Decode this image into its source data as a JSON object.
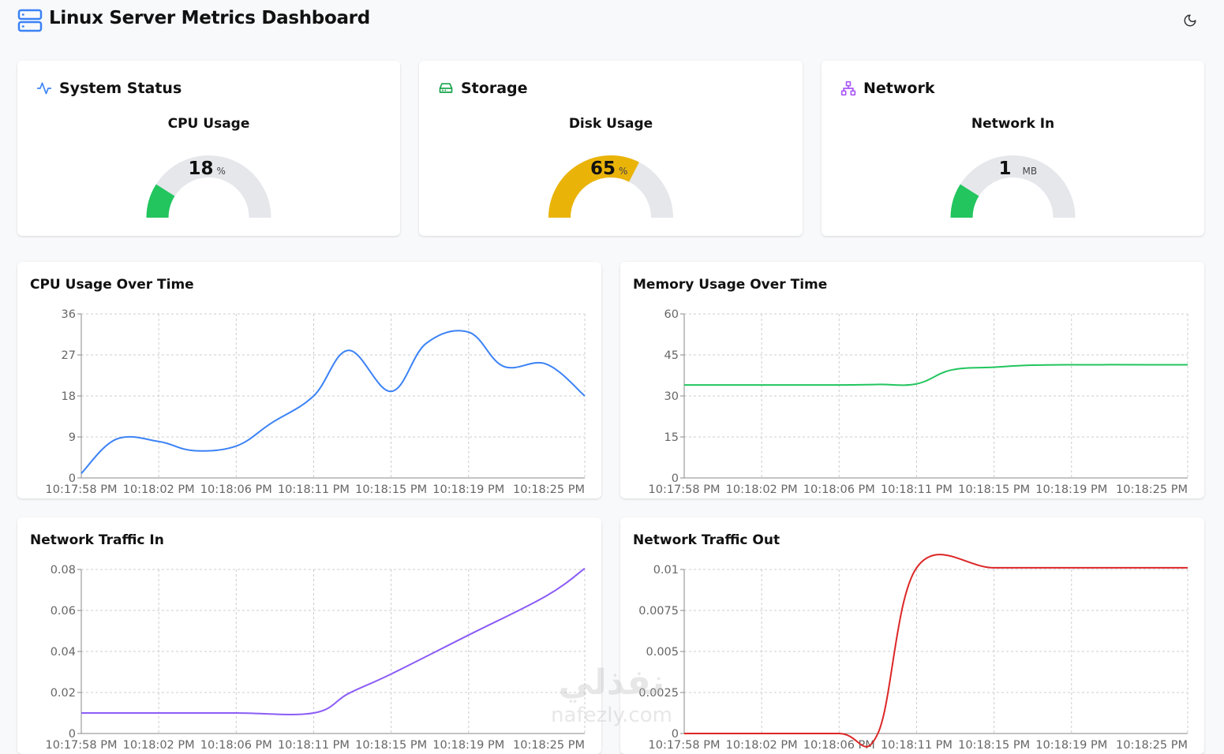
{
  "header": {
    "title": "Linux Server Metrics Dashboard",
    "logo_icon": "server-icon",
    "theme_toggle_icon": "moon-icon"
  },
  "stat_cards": [
    {
      "title": "System Status",
      "icon": "activity-icon",
      "icon_color": "#3b82f6",
      "gauge_label": "CPU Usage",
      "value": "18",
      "unit": "%",
      "fraction": 0.18,
      "gauge_color": "#22c55e"
    },
    {
      "title": "Storage",
      "icon": "hard-drive-icon",
      "icon_color": "#16a34a",
      "gauge_label": "Disk Usage",
      "value": "65",
      "unit": "%",
      "fraction": 0.65,
      "gauge_color": "#eab308"
    },
    {
      "title": "Network",
      "icon": "network-icon",
      "icon_color": "#a855f7",
      "gauge_label": "Network In",
      "value": "1",
      "unit": "MB",
      "fraction": 0.18,
      "gauge_color": "#22c55e"
    }
  ],
  "chart_data": [
    {
      "type": "line",
      "title": "CPU Usage Over Time",
      "color": "#3b82f6",
      "x_labels": [
        "10:17:58 PM",
        "10:18:02 PM",
        "10:18:06 PM",
        "10:18:11 PM",
        "10:18:15 PM",
        "10:18:19 PM",
        "10:18:25 PM"
      ],
      "yticks": [
        "0",
        "9",
        "18",
        "27",
        "36"
      ],
      "ylim": [
        0,
        36
      ],
      "grid": true,
      "x": [
        0,
        0.45,
        1,
        1.45,
        2,
        2.45,
        3,
        3.45,
        4,
        4.45,
        5,
        5.45,
        6,
        6.5
      ],
      "y": [
        1,
        8.5,
        8,
        6,
        7,
        12,
        18,
        28,
        19,
        29.5,
        32,
        24.5,
        25,
        18
      ]
    },
    {
      "type": "line",
      "title": "Memory Usage Over Time",
      "color": "#22c55e",
      "x_labels": [
        "10:17:58 PM",
        "10:18:02 PM",
        "10:18:06 PM",
        "10:18:11 PM",
        "10:18:15 PM",
        "10:18:19 PM",
        "10:18:25 PM"
      ],
      "yticks": [
        "0",
        "15",
        "30",
        "45",
        "60"
      ],
      "ylim": [
        0,
        60
      ],
      "grid": true,
      "x": [
        0,
        1,
        2,
        2.5,
        3,
        3.45,
        4,
        4.45,
        5,
        6,
        6.5
      ],
      "y": [
        34,
        34,
        34,
        34.2,
        34.4,
        39.5,
        40.5,
        41.2,
        41.4,
        41.4,
        41.4
      ]
    },
    {
      "type": "line",
      "title": "Network Traffic In",
      "color": "#8b5cf6",
      "x_labels": [
        "10:17:58 PM",
        "10:18:02 PM",
        "10:18:06 PM",
        "10:18:11 PM",
        "10:18:15 PM",
        "10:18:19 PM",
        "10:18:25 PM"
      ],
      "yticks": [
        "0",
        "0.02",
        "0.04",
        "0.06",
        "0.08"
      ],
      "ylim": [
        0,
        0.08
      ],
      "grid": true,
      "x": [
        0,
        1,
        2,
        3,
        3.45,
        4,
        5,
        6,
        6.5
      ],
      "y": [
        0.01,
        0.01,
        0.01,
        0.01,
        0.0195,
        0.029,
        0.048,
        0.067,
        0.0805
      ]
    },
    {
      "type": "line",
      "title": "Network Traffic Out",
      "color": "#dc2626",
      "x_labels": [
        "10:17:58 PM",
        "10:18:02 PM",
        "10:18:06 PM",
        "10:18:11 PM",
        "10:18:15 PM",
        "10:18:19 PM",
        "10:18:25 PM"
      ],
      "yticks": [
        "0",
        "0.0025",
        "0.005",
        "0.0075",
        "0.01"
      ],
      "ylim": [
        0,
        0.01
      ],
      "grid": true,
      "x": [
        0,
        1,
        2,
        2.5,
        3,
        4,
        5,
        6,
        6.5
      ],
      "y": [
        0,
        0,
        0,
        0,
        0.0101,
        0.0101,
        0.0101,
        0.0101,
        0.0101
      ]
    }
  ],
  "watermark": {
    "arabic": "نفذلي",
    "latin": "nafezly.com"
  }
}
